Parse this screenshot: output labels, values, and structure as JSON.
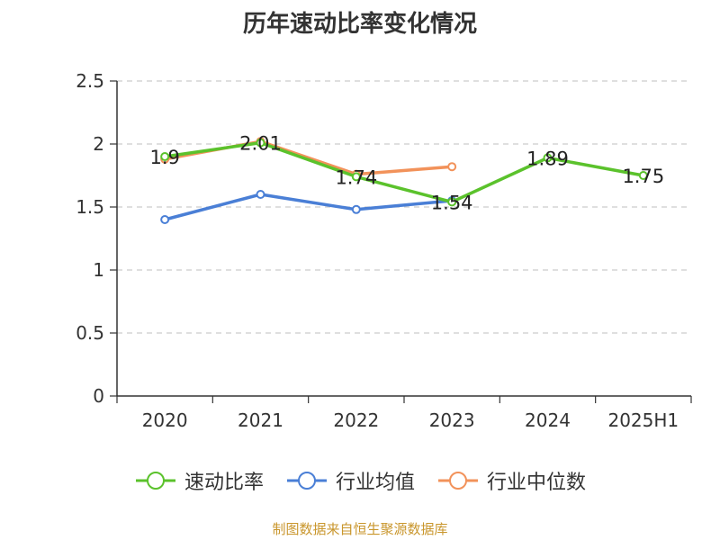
{
  "chart_data": {
    "type": "line",
    "title": "历年速动比率变化情况",
    "categories": [
      "2020",
      "2021",
      "2022",
      "2023",
      "2024",
      "2025H1"
    ],
    "ylim": [
      0,
      2.5
    ],
    "yticks": [
      "0",
      "0.5",
      "1",
      "1.5",
      "2",
      "2.5"
    ],
    "grid": true,
    "legend_position": "bottom",
    "series": [
      {
        "name": "速动比率",
        "color": "#5bc22c",
        "values": [
          1.9,
          2.01,
          1.74,
          1.54,
          1.89,
          1.75
        ],
        "labels": [
          "1.9",
          "2.01",
          "1.74",
          "1.54",
          "1.89",
          "1.75"
        ]
      },
      {
        "name": "行业均值",
        "color": "#4a7fd6",
        "values": [
          1.4,
          1.6,
          1.48,
          1.55,
          null,
          null
        ]
      },
      {
        "name": "行业中位数",
        "color": "#f2925a",
        "values": [
          1.88,
          2.02,
          1.76,
          1.82,
          null,
          null
        ]
      }
    ]
  },
  "source": "制图数据来自恒生聚源数据库"
}
